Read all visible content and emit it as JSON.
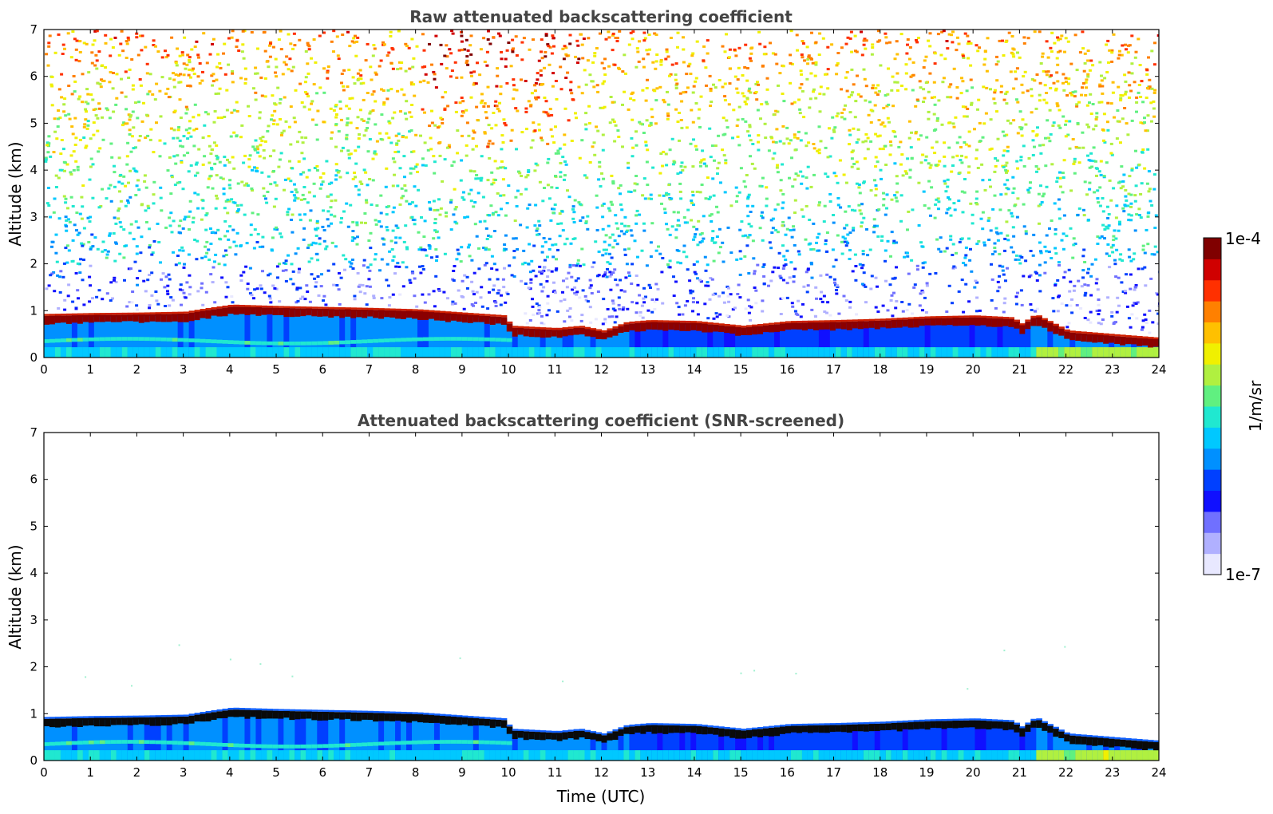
{
  "chart_data": [
    {
      "type": "heatmap",
      "title": "Raw attenuated backscattering coefficient",
      "xlabel": "",
      "ylabel": "Altitude (km)",
      "xlim": [
        0,
        24
      ],
      "ylim": [
        0,
        7
      ],
      "xticks": [
        "0",
        "1",
        "2",
        "3",
        "4",
        "5",
        "6",
        "7",
        "8",
        "9",
        "10",
        "11",
        "12",
        "13",
        "14",
        "15",
        "16",
        "17",
        "18",
        "19",
        "20",
        "21",
        "22",
        "23",
        "24"
      ],
      "yticks": [
        "0",
        "1",
        "2",
        "3",
        "4",
        "5",
        "6",
        "7"
      ],
      "screened": false,
      "boundary_layer_top_km": [
        [
          0,
          0.85
        ],
        [
          1,
          0.87
        ],
        [
          2,
          0.88
        ],
        [
          3,
          0.9
        ],
        [
          3.5,
          0.98
        ],
        [
          4,
          1.05
        ],
        [
          5,
          1.02
        ],
        [
          6,
          1.0
        ],
        [
          7,
          0.98
        ],
        [
          8,
          0.95
        ],
        [
          9,
          0.88
        ],
        [
          9.9,
          0.82
        ],
        [
          10,
          0.6
        ],
        [
          11,
          0.55
        ],
        [
          11.5,
          0.6
        ],
        [
          12,
          0.5
        ],
        [
          12.5,
          0.68
        ],
        [
          13,
          0.72
        ],
        [
          14,
          0.7
        ],
        [
          15,
          0.6
        ],
        [
          16,
          0.7
        ],
        [
          17,
          0.72
        ],
        [
          18,
          0.75
        ],
        [
          19,
          0.8
        ],
        [
          20,
          0.82
        ],
        [
          20.8,
          0.78
        ],
        [
          21,
          0.65
        ],
        [
          21.3,
          0.85
        ],
        [
          21.6,
          0.7
        ],
        [
          22,
          0.5
        ],
        [
          23,
          0.42
        ],
        [
          23.9,
          0.35
        ]
      ]
    },
    {
      "type": "heatmap",
      "title": "Attenuated backscattering coefficient (SNR-screened)",
      "xlabel": "Time (UTC)",
      "ylabel": "Altitude (km)",
      "xlim": [
        0,
        24
      ],
      "ylim": [
        0,
        7
      ],
      "xticks": [
        "0",
        "1",
        "2",
        "3",
        "4",
        "5",
        "6",
        "7",
        "8",
        "9",
        "10",
        "11",
        "12",
        "13",
        "14",
        "15",
        "16",
        "17",
        "18",
        "19",
        "20",
        "21",
        "22",
        "23",
        "24"
      ],
      "yticks": [
        "0",
        "1",
        "2",
        "3",
        "4",
        "5",
        "6",
        "7"
      ],
      "screened": true,
      "boundary_layer_top_km": [
        [
          0,
          0.85
        ],
        [
          1,
          0.87
        ],
        [
          2,
          0.88
        ],
        [
          3,
          0.9
        ],
        [
          3.5,
          0.98
        ],
        [
          4,
          1.05
        ],
        [
          5,
          1.02
        ],
        [
          6,
          1.0
        ],
        [
          7,
          0.98
        ],
        [
          8,
          0.95
        ],
        [
          9,
          0.88
        ],
        [
          9.9,
          0.82
        ],
        [
          10,
          0.6
        ],
        [
          11,
          0.55
        ],
        [
          11.5,
          0.6
        ],
        [
          12,
          0.5
        ],
        [
          12.5,
          0.68
        ],
        [
          13,
          0.72
        ],
        [
          14,
          0.7
        ],
        [
          15,
          0.6
        ],
        [
          16,
          0.7
        ],
        [
          17,
          0.72
        ],
        [
          18,
          0.75
        ],
        [
          19,
          0.8
        ],
        [
          20,
          0.82
        ],
        [
          20.8,
          0.78
        ],
        [
          21,
          0.65
        ],
        [
          21.3,
          0.85
        ],
        [
          21.6,
          0.7
        ],
        [
          22,
          0.5
        ],
        [
          23,
          0.42
        ],
        [
          23.9,
          0.35
        ]
      ]
    }
  ],
  "colorbar": {
    "label": "1/m/sr",
    "max_label": "1e-4",
    "min_label": "1e-7",
    "scale": "log",
    "range": [
      1e-07,
      0.0001
    ],
    "colormap": [
      "#e8e8ff",
      "#b0b0ff",
      "#7070ff",
      "#1010ff",
      "#0040ff",
      "#0090ff",
      "#00c8ff",
      "#20e8d0",
      "#60f080",
      "#b0f040",
      "#f0f000",
      "#ffc000",
      "#ff8000",
      "#ff3000",
      "#d00000",
      "#800000"
    ]
  }
}
